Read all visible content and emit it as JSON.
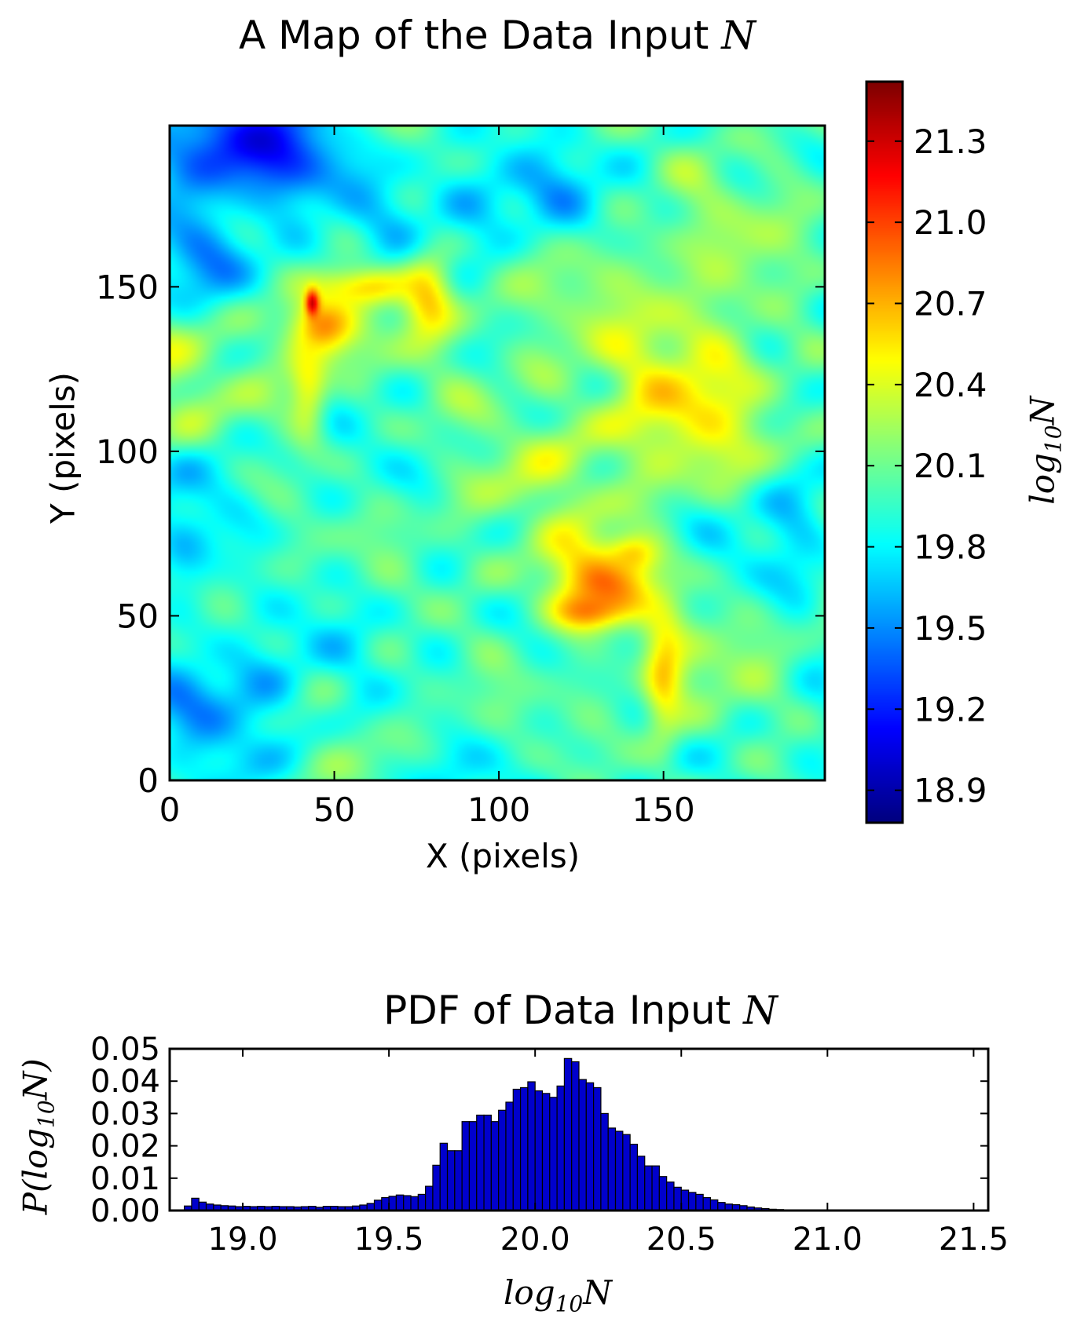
{
  "chart_data": [
    {
      "type": "heatmap",
      "title_prefix": "A Map of the Data Input ",
      "title_symbol": "N",
      "xlabel": "X (pixels)",
      "ylabel": "Y (pixels)",
      "xlim": [
        0,
        199
      ],
      "ylim": [
        0,
        199
      ],
      "x_ticks": [
        0,
        50,
        100,
        150
      ],
      "y_ticks": [
        0,
        50,
        100,
        150
      ],
      "colormap": "jet",
      "colorbar": {
        "label_base": "log",
        "label_sub": "10",
        "label_var": "N",
        "range": [
          18.78,
          21.52
        ],
        "ticks": [
          "18.9",
          "19.2",
          "19.5",
          "19.8",
          "20.1",
          "20.4",
          "20.7",
          "21.0",
          "21.3"
        ]
      },
      "background_level": 19.95,
      "features": [
        {
          "kind": "low",
          "x": 25,
          "y": 190,
          "rx": 30,
          "ry": 18,
          "value": 18.9
        },
        {
          "kind": "low",
          "x": 10,
          "y": 160,
          "rx": 22,
          "ry": 18,
          "value": 19.35
        },
        {
          "kind": "low",
          "x": 110,
          "y": 175,
          "rx": 22,
          "ry": 12,
          "value": 19.7
        },
        {
          "kind": "low",
          "x": 190,
          "y": 75,
          "rx": 16,
          "ry": 28,
          "value": 19.55
        },
        {
          "kind": "low",
          "x": 15,
          "y": 20,
          "rx": 25,
          "ry": 22,
          "value": 19.6
        },
        {
          "kind": "low",
          "x": 5,
          "y": 70,
          "rx": 10,
          "ry": 25,
          "value": 19.6
        },
        {
          "kind": "high",
          "x": 100,
          "y": 120,
          "rx": 100,
          "ry": 40,
          "value": 20.2
        },
        {
          "kind": "high",
          "x": 45,
          "y": 138,
          "rx": 10,
          "ry": 9,
          "value": 20.9
        },
        {
          "kind": "high",
          "x": 42,
          "y": 118,
          "rx": 6,
          "ry": 14,
          "value": 20.7
        },
        {
          "kind": "high",
          "x": 60,
          "y": 150,
          "rx": 15,
          "ry": 6,
          "value": 20.7
        },
        {
          "kind": "high",
          "x": 78,
          "y": 148,
          "rx": 8,
          "ry": 12,
          "value": 20.8
        },
        {
          "kind": "high",
          "x": 43,
          "y": 145,
          "rx": 2,
          "ry": 4,
          "value": 21.4
        },
        {
          "kind": "high",
          "x": 130,
          "y": 60,
          "rx": 18,
          "ry": 12,
          "value": 20.8
        },
        {
          "kind": "high",
          "x": 128,
          "y": 52,
          "rx": 10,
          "ry": 6,
          "value": 20.95
        },
        {
          "kind": "high",
          "x": 140,
          "y": 68,
          "rx": 8,
          "ry": 6,
          "value": 20.75
        },
        {
          "kind": "high",
          "x": 150,
          "y": 30,
          "rx": 6,
          "ry": 20,
          "value": 20.45
        },
        {
          "kind": "high",
          "x": 160,
          "y": 120,
          "rx": 25,
          "ry": 25,
          "value": 20.45
        }
      ]
    },
    {
      "type": "bar",
      "title_prefix": "PDF of Data Input ",
      "title_symbol": "N",
      "xlabel_base": "log",
      "xlabel_sub": "10",
      "xlabel_var": "N",
      "ylabel_outer": "P(",
      "ylabel_base": "log",
      "ylabel_sub": "10",
      "ylabel_var": "N",
      "ylabel_close": ")",
      "xlim": [
        18.75,
        21.55
      ],
      "ylim": [
        0,
        0.05
      ],
      "x_ticks": [
        "19.0",
        "19.5",
        "20.0",
        "20.5",
        "21.0",
        "21.5"
      ],
      "y_ticks": [
        "0.00",
        "0.01",
        "0.02",
        "0.03",
        "0.04",
        "0.05"
      ],
      "bin_start": 18.8,
      "bin_width": 0.025,
      "bar_color": "#0000cc",
      "values": [
        0.0014,
        0.0038,
        0.0026,
        0.002,
        0.0017,
        0.0015,
        0.0014,
        0.0012,
        0.0013,
        0.0012,
        0.0013,
        0.0012,
        0.0013,
        0.0012,
        0.0012,
        0.0011,
        0.0012,
        0.0013,
        0.001,
        0.0013,
        0.0013,
        0.0012,
        0.0012,
        0.0014,
        0.0017,
        0.0022,
        0.0032,
        0.004,
        0.0044,
        0.0048,
        0.0046,
        0.0043,
        0.005,
        0.0075,
        0.014,
        0.0208,
        0.0185,
        0.0185,
        0.0275,
        0.0275,
        0.0295,
        0.0295,
        0.0275,
        0.031,
        0.0335,
        0.0375,
        0.038,
        0.0398,
        0.037,
        0.0362,
        0.035,
        0.0385,
        0.047,
        0.046,
        0.0405,
        0.0395,
        0.038,
        0.03,
        0.0255,
        0.0245,
        0.0235,
        0.0205,
        0.0168,
        0.0138,
        0.0138,
        0.0105,
        0.0088,
        0.0072,
        0.0063,
        0.0056,
        0.005,
        0.004,
        0.0033,
        0.0025,
        0.002,
        0.0018,
        0.0015,
        0.0011,
        0.0008,
        0.0006,
        0.0004,
        0.0003,
        0.0002,
        0.0001,
        0.0001,
        0.0001,
        0.0001,
        0.0001,
        0.0001,
        0.0001
      ]
    }
  ]
}
